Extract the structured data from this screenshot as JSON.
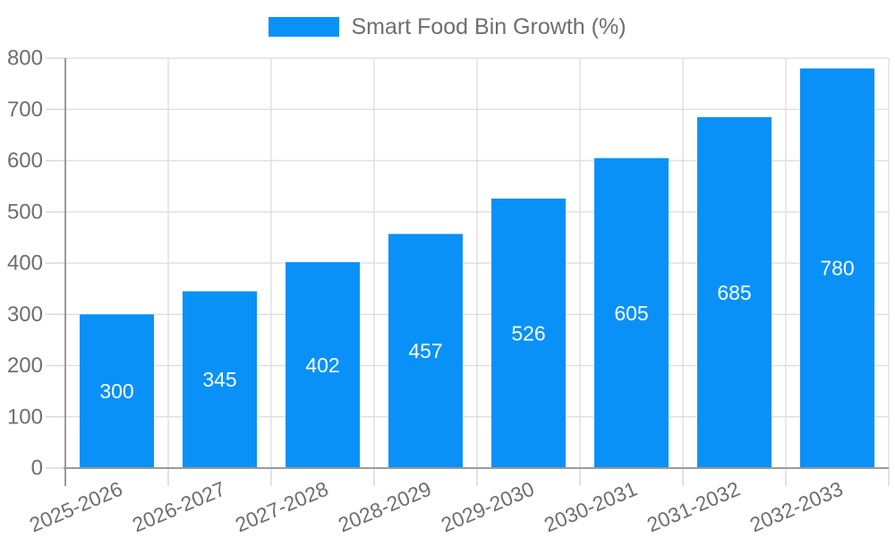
{
  "legend": {
    "label": "Smart Food Bin Growth (%)"
  },
  "chart_data": {
    "type": "bar",
    "title": "",
    "categories": [
      "2025-2026",
      "2026-2027",
      "2027-2028",
      "2028-2029",
      "2029-2030",
      "2030-2031",
      "2031-2032",
      "2032-2033"
    ],
    "series": [
      {
        "name": "Smart Food Bin Growth (%)",
        "values": [
          300,
          345,
          402,
          457,
          526,
          605,
          685,
          780
        ]
      }
    ],
    "value_labels": [
      "300",
      "345",
      "402",
      "457",
      "526",
      "605",
      "685",
      "780"
    ],
    "ytick_labels": [
      "0",
      "100",
      "200",
      "300",
      "400",
      "500",
      "600",
      "700",
      "800"
    ],
    "xlabel": "",
    "ylabel": "",
    "ylim": [
      0,
      800
    ],
    "ytick_step": 100,
    "grid": true,
    "legend_position": "top-center",
    "x_label_rotation_deg": -23,
    "colors": {
      "bar": "#0991f8",
      "value_label": "#ffffff",
      "axis_text": "#6e6e6e",
      "grid_line": "#e0e0e0",
      "tick_line": "#d9d9d9",
      "axis_line": "#9a9a9a",
      "background": "#ffffff"
    }
  }
}
